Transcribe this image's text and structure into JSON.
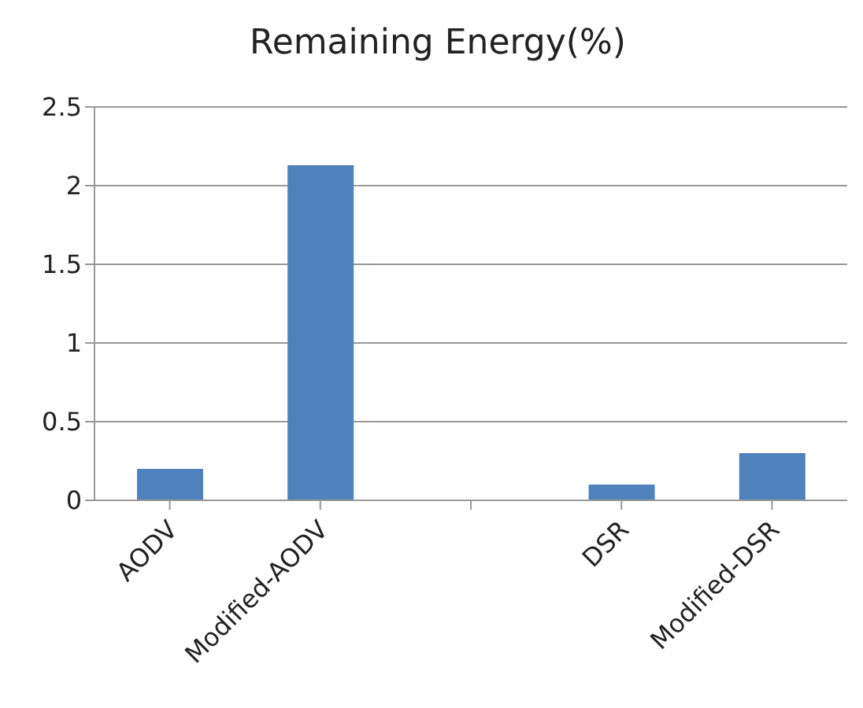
{
  "chart_data": {
    "type": "bar",
    "title": "Remaining Energy(%)",
    "categories": [
      "AODV",
      "Modified-AODV",
      null,
      "DSR",
      "Modified-DSR"
    ],
    "values": [
      0.2,
      2.13,
      null,
      0.1,
      0.3
    ],
    "color": "#4f81bd",
    "ylim": [
      0,
      2.5
    ],
    "yticks": [
      0,
      0.5,
      1,
      1.5,
      2,
      2.5
    ],
    "grid": "y"
  }
}
